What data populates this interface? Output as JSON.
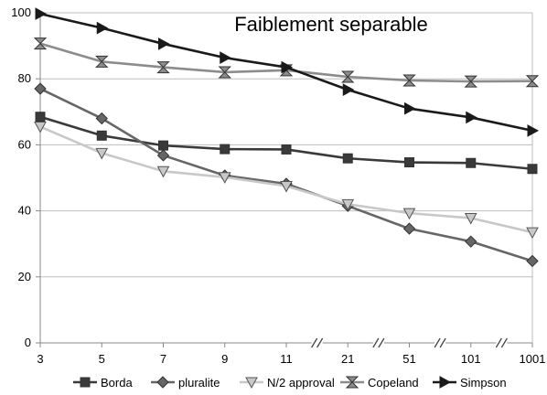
{
  "chart_data": {
    "type": "line",
    "title": "Faiblement separable",
    "xlabel": "",
    "ylabel": "",
    "categories": [
      "3",
      "5",
      "7",
      "9",
      "11",
      "21",
      "51",
      "101",
      "1001"
    ],
    "axis_breaks_after_index": [
      4,
      5,
      6,
      7
    ],
    "ylim": [
      0,
      100
    ],
    "yticks": [
      0,
      20,
      40,
      60,
      80,
      100
    ],
    "grid": "horizontal",
    "legend_position": "bottom",
    "series": [
      {
        "name": "Borda",
        "color": "#3a3a3a",
        "marker": "square",
        "values": [
          68.5,
          62.8,
          59.8,
          58.7,
          58.6,
          55.9,
          54.7,
          54.5,
          52.7
        ]
      },
      {
        "name": "pluralite",
        "color": "#666666",
        "marker": "diamond",
        "values": [
          77.0,
          68.0,
          56.8,
          50.7,
          48.2,
          41.5,
          34.6,
          30.7,
          24.8
        ]
      },
      {
        "name": "N/2 approval",
        "color": "#c8c8c8",
        "marker": "triangle-down",
        "values": [
          65.5,
          57.5,
          52.0,
          50.2,
          47.5,
          42.0,
          39.3,
          37.8,
          33.5
        ]
      },
      {
        "name": "Copeland",
        "color": "#8c8c8c",
        "marker": "hourglass",
        "values": [
          90.7,
          85.2,
          83.5,
          82.0,
          82.6,
          80.6,
          79.5,
          79.2,
          79.3
        ]
      },
      {
        "name": "Simpson",
        "color": "#1a1a1a",
        "marker": "triangle-right",
        "values": [
          99.7,
          95.4,
          90.6,
          86.4,
          83.5,
          76.7,
          71.0,
          68.3,
          64.3
        ]
      }
    ]
  }
}
